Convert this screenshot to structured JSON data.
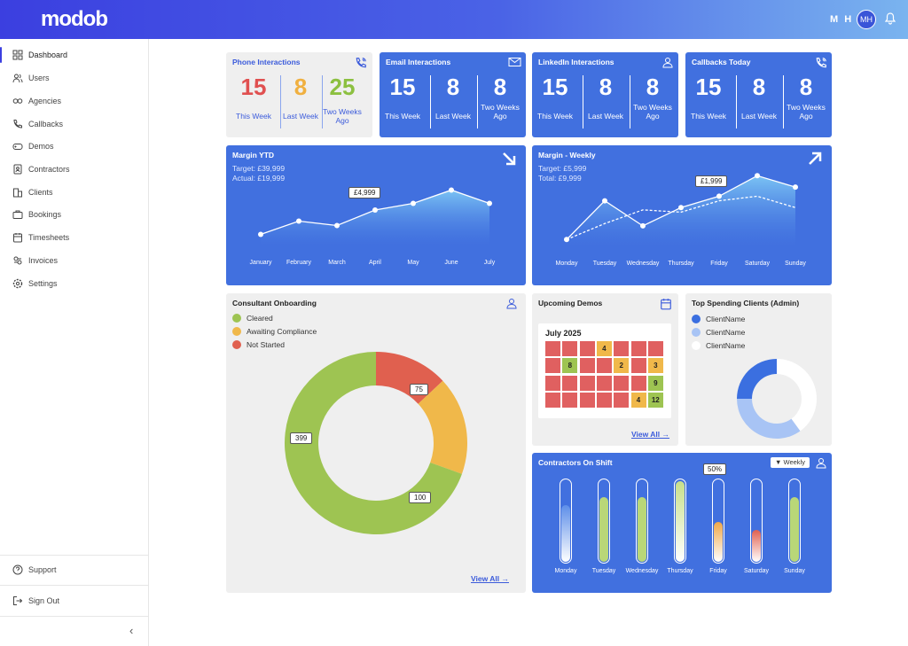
{
  "header": {
    "logo": "modob",
    "initials": "M H",
    "avatar": "MH"
  },
  "sidebar": {
    "items": [
      {
        "label": "Dashboard",
        "icon": "grid-icon"
      },
      {
        "label": "Users",
        "icon": "users-icon"
      },
      {
        "label": "Agencies",
        "icon": "link-icon"
      },
      {
        "label": "Callbacks",
        "icon": "phone-icon"
      },
      {
        "label": "Demos",
        "icon": "gamepad-icon"
      },
      {
        "label": "Contractors",
        "icon": "id-card-icon"
      },
      {
        "label": "Clients",
        "icon": "building-icon"
      },
      {
        "label": "Bookings",
        "icon": "briefcase-icon"
      },
      {
        "label": "Timesheets",
        "icon": "calendar-icon"
      },
      {
        "label": "Invoices",
        "icon": "invoice-icon"
      },
      {
        "label": "Settings",
        "icon": "gear-icon"
      }
    ],
    "support": "Support",
    "signout": "Sign Out",
    "collapse": "‹"
  },
  "interactions": [
    {
      "title": "Phone Interactions",
      "this": "15",
      "last": "8",
      "two": "25",
      "l1": "This Week",
      "l2": "Last Week",
      "l3": "Two Weeks Ago",
      "colors": [
        "#e05050",
        "#f0b040",
        "#8cc040"
      ]
    },
    {
      "title": "Email Interactions",
      "this": "15",
      "last": "8",
      "two": "8",
      "l1": "This Week",
      "l2": "Last Week",
      "l3": "Two Weeks Ago"
    },
    {
      "title": "LinkedIn Interactions",
      "this": "15",
      "last": "8",
      "two": "8",
      "l1": "This Week",
      "l2": "Last Week",
      "l3": "Two Weeks Ago"
    },
    {
      "title": "Callbacks Today",
      "this": "15",
      "last": "8",
      "two": "8",
      "l1": "This Week",
      "l2": "Last Week",
      "l3": "Two Weeks Ago"
    }
  ],
  "margin_ytd": {
    "title": "Margin YTD",
    "target": "Target: £39,999",
    "actual": "Actual: £19,999",
    "tooltip": "£4,999"
  },
  "margin_weekly": {
    "title": "Margin - Weekly",
    "target": "Target: £5,999",
    "total": "Total: £9,999",
    "tooltip": "£1,999"
  },
  "onboarding": {
    "title": "Consultant Onboarding",
    "legend": [
      "Cleared",
      "Awaiting Compliance",
      "Not Started"
    ],
    "values": [
      "399",
      "100",
      "75"
    ],
    "view_all": "View All →"
  },
  "demos": {
    "title": "Upcoming Demos",
    "month": "July 2025",
    "view_all": "View All →",
    "marked": [
      {
        "i": 3,
        "t": "4",
        "c": "y"
      },
      {
        "i": 8,
        "t": "8",
        "c": "g"
      },
      {
        "i": 11,
        "t": "2",
        "c": "y"
      },
      {
        "i": 13,
        "t": "3",
        "c": "y"
      },
      {
        "i": 20,
        "t": "9",
        "c": "g"
      },
      {
        "i": 26,
        "t": "4",
        "c": "y"
      },
      {
        "i": 27,
        "t": "12",
        "c": "g"
      }
    ]
  },
  "top_clients": {
    "title": "Top Spending Clients (Admin)",
    "legend": [
      "ClientName",
      "ClientName",
      "ClientName"
    ]
  },
  "contractors": {
    "title": "Contractors On Shift",
    "filter": "▼ Weekly",
    "tooltip": "50%"
  },
  "chart_data": [
    {
      "type": "area",
      "title": "Margin YTD",
      "categories": [
        "January",
        "February",
        "March",
        "April",
        "May",
        "June",
        "July"
      ],
      "values": [
        5,
        11,
        9,
        16,
        19,
        25,
        19
      ],
      "ylim": [
        0,
        30
      ]
    },
    {
      "type": "line",
      "title": "Margin - Weekly",
      "categories": [
        "Monday",
        "Tuesday",
        "Wednesday",
        "Thursday",
        "Friday",
        "Saturday",
        "Sunday"
      ],
      "series": [
        {
          "values": [
            3,
            20,
            9,
            17,
            22,
            31,
            26
          ]
        },
        {
          "values": [
            3,
            10,
            16,
            15,
            20,
            22,
            17
          ]
        }
      ],
      "ylim": [
        0,
        35
      ]
    },
    {
      "type": "pie",
      "title": "Consultant Onboarding",
      "labels": [
        "Cleared",
        "Awaiting Compliance",
        "Not Started"
      ],
      "values": [
        399,
        100,
        75
      ],
      "colors": [
        "#9ec452",
        "#f0b84a",
        "#e0604f"
      ]
    },
    {
      "type": "pie",
      "title": "Top Spending Clients (Admin)",
      "labels": [
        "ClientName",
        "ClientName",
        "ClientName"
      ],
      "values": [
        25,
        35,
        40
      ],
      "colors": [
        "#3b6fe0",
        "#a8c4f5",
        "#ffffff"
      ]
    },
    {
      "type": "bar",
      "title": "Contractors On Shift",
      "categories": [
        "Monday",
        "Tuesday",
        "Wednesday",
        "Thursday",
        "Friday",
        "Saturday",
        "Sunday"
      ],
      "values": [
        70,
        80,
        80,
        100,
        50,
        40,
        80
      ],
      "ylim": [
        0,
        100
      ]
    }
  ]
}
